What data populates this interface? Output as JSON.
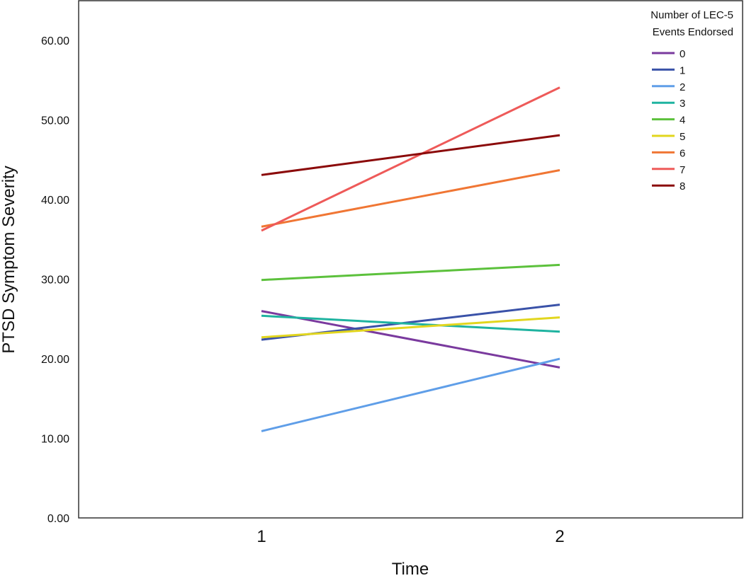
{
  "chart_data": {
    "type": "line",
    "title": "",
    "xlabel": "Time",
    "ylabel": "PTSD Symptom Severity",
    "x": [
      "1",
      "2"
    ],
    "ylim": [
      0,
      65
    ],
    "y_ticks": [
      "0.00",
      "10.00",
      "20.00",
      "30.00",
      "40.00",
      "50.00",
      "60.00"
    ],
    "grid": false,
    "legend": {
      "position": "top-right",
      "title_lines": [
        "Number of LEC-5",
        "Events Endorsed"
      ]
    },
    "series": [
      {
        "name": "0",
        "color": "#7a3a9e",
        "values": [
          26.0,
          18.9
        ]
      },
      {
        "name": "1",
        "color": "#3a52a8",
        "values": [
          22.4,
          26.8
        ]
      },
      {
        "name": "2",
        "color": "#5f9ee8",
        "values": [
          10.9,
          20.0
        ]
      },
      {
        "name": "3",
        "color": "#1fb3a0",
        "values": [
          25.4,
          23.4
        ]
      },
      {
        "name": "4",
        "color": "#5cc13c",
        "values": [
          29.9,
          31.8
        ]
      },
      {
        "name": "5",
        "color": "#e2d61e",
        "values": [
          22.7,
          25.2
        ]
      },
      {
        "name": "6",
        "color": "#f07634",
        "values": [
          36.6,
          43.7
        ]
      },
      {
        "name": "7",
        "color": "#ee5a59",
        "values": [
          36.1,
          54.1
        ]
      },
      {
        "name": "8",
        "color": "#8b0a0a",
        "values": [
          43.1,
          48.1
        ]
      }
    ]
  }
}
